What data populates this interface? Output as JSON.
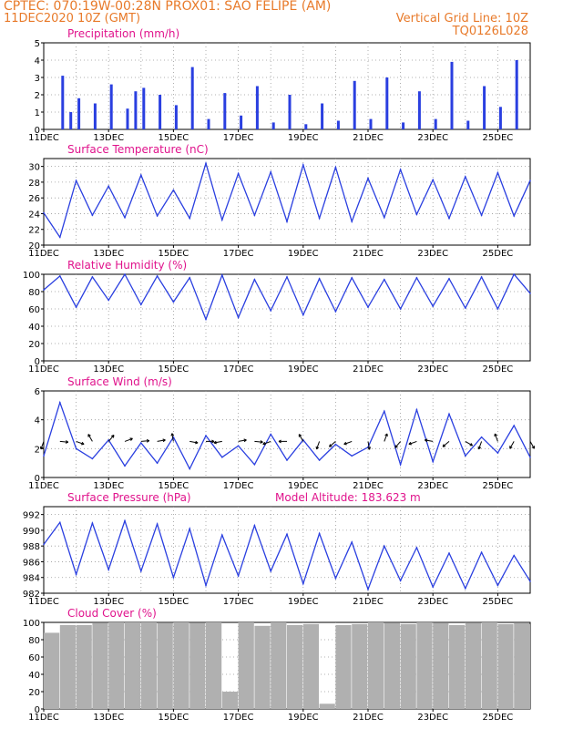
{
  "header": {
    "line1": "CPTEC:   070:19W-00:28N   PROX01: SAO FELIPE (AM)",
    "line2_left": "11DEC2020 10Z (GMT)",
    "line2_right": "Vertical Grid Line: 10Z",
    "line3_right": "TQ0126L028"
  },
  "colors": {
    "header": "#e87a2a",
    "title": "#e0138c",
    "series": "#2a3fe0",
    "cloud": "#b0b0b0",
    "wind_arrow": "#000000"
  },
  "chart_data": [
    {
      "type": "bar",
      "title": "Precipitation (mm/h)",
      "ylim": [
        0,
        5
      ],
      "yticks": [
        0,
        1,
        2,
        3,
        4,
        5
      ],
      "xlabels": [
        "11DEC",
        "13DEC",
        "15DEC",
        "17DEC",
        "19DEC",
        "21DEC",
        "23DEC",
        "25DEC"
      ],
      "x": [
        "12DEC 00Z",
        "12DEC 06Z",
        "12DEC 12Z",
        "13DEC 00Z",
        "13DEC 12Z",
        "14DEC 00Z",
        "14DEC 06Z",
        "14DEC 12Z",
        "15DEC 00Z",
        "15DEC 12Z",
        "16DEC 00Z",
        "16DEC 12Z",
        "17DEC 00Z",
        "17DEC 12Z",
        "18DEC 00Z",
        "18DEC 12Z",
        "19DEC 00Z",
        "19DEC 12Z",
        "20DEC 00Z",
        "20DEC 12Z",
        "21DEC 00Z",
        "21DEC 12Z",
        "22DEC 00Z",
        "22DEC 12Z",
        "23DEC 00Z",
        "23DEC 12Z",
        "24DEC 00Z",
        "24DEC 12Z",
        "25DEC 00Z",
        "25DEC 12Z",
        "26DEC 00Z"
      ],
      "values": [
        3.1,
        1.0,
        1.8,
        1.5,
        2.6,
        1.2,
        2.2,
        2.4,
        2.0,
        1.4,
        3.6,
        0.6,
        2.1,
        0.8,
        2.5,
        0.4,
        2.0,
        0.3,
        1.5,
        0.5,
        2.8,
        0.6,
        3.0,
        0.4,
        2.2,
        0.6,
        3.9,
        0.5,
        2.5,
        1.3,
        4.0
      ]
    },
    {
      "type": "line",
      "title": "Surface Temperature (nC)",
      "ylim": [
        20,
        31
      ],
      "yticks": [
        20,
        22,
        24,
        26,
        28,
        30
      ],
      "xlabels": [
        "11DEC",
        "13DEC",
        "15DEC",
        "17DEC",
        "19DEC",
        "21DEC",
        "23DEC",
        "25DEC"
      ],
      "x": [
        "11DEC 10Z",
        "11DEC 22Z",
        "12DEC 10Z",
        "12DEC 22Z",
        "13DEC 10Z",
        "13DEC 22Z",
        "14DEC 10Z",
        "14DEC 22Z",
        "15DEC 10Z",
        "15DEC 22Z",
        "16DEC 10Z",
        "16DEC 22Z",
        "17DEC 10Z",
        "17DEC 22Z",
        "18DEC 10Z",
        "18DEC 22Z",
        "19DEC 10Z",
        "19DEC 22Z",
        "20DEC 10Z",
        "20DEC 22Z",
        "21DEC 10Z",
        "21DEC 22Z",
        "22DEC 10Z",
        "22DEC 22Z",
        "23DEC 10Z",
        "23DEC 22Z",
        "24DEC 10Z",
        "24DEC 22Z",
        "25DEC 10Z",
        "25DEC 22Z",
        "26DEC 10Z"
      ],
      "series": [
        {
          "values": [
            24.1,
            21.0,
            28.2,
            23.8,
            27.5,
            23.5,
            28.9,
            23.7,
            27.0,
            23.4,
            30.4,
            23.2,
            29.1,
            23.8,
            29.3,
            23.0,
            30.2,
            23.4,
            29.9,
            23.0,
            28.5,
            23.5,
            29.6,
            23.9,
            28.3,
            23.4,
            28.7,
            23.8,
            29.2,
            23.7,
            28.2
          ]
        }
      ]
    },
    {
      "type": "line",
      "title": "Relative Humidity (%)",
      "ylim": [
        0,
        100
      ],
      "yticks": [
        0,
        20,
        40,
        60,
        80,
        100
      ],
      "xlabels": [
        "11DEC",
        "13DEC",
        "15DEC",
        "17DEC",
        "19DEC",
        "21DEC",
        "23DEC",
        "25DEC"
      ],
      "x": [
        "11DEC 10Z",
        "11DEC 22Z",
        "12DEC 10Z",
        "12DEC 22Z",
        "13DEC 10Z",
        "13DEC 22Z",
        "14DEC 10Z",
        "14DEC 22Z",
        "15DEC 10Z",
        "15DEC 22Z",
        "16DEC 10Z",
        "16DEC 22Z",
        "17DEC 10Z",
        "17DEC 22Z",
        "18DEC 10Z",
        "18DEC 22Z",
        "19DEC 10Z",
        "19DEC 22Z",
        "20DEC 10Z",
        "20DEC 22Z",
        "21DEC 10Z",
        "21DEC 22Z",
        "22DEC 10Z",
        "22DEC 22Z",
        "23DEC 10Z",
        "23DEC 22Z",
        "24DEC 10Z",
        "24DEC 22Z",
        "25DEC 10Z",
        "25DEC 22Z",
        "26DEC 10Z"
      ],
      "series": [
        {
          "values": [
            82,
            98,
            62,
            97,
            70,
            100,
            65,
            98,
            68,
            96,
            48,
            99,
            50,
            94,
            58,
            97,
            53,
            95,
            57,
            96,
            62,
            94,
            60,
            96,
            63,
            95,
            61,
            97,
            60,
            100,
            78
          ]
        }
      ]
    },
    {
      "type": "line",
      "title": "Surface Wind (m/s)",
      "ylim": [
        0,
        6
      ],
      "yticks": [
        0,
        2,
        4,
        6
      ],
      "xlabels": [
        "11DEC",
        "13DEC",
        "15DEC",
        "17DEC",
        "19DEC",
        "21DEC",
        "23DEC",
        "25DEC"
      ],
      "x": [
        "11DEC 10Z",
        "11DEC 22Z",
        "12DEC 10Z",
        "12DEC 22Z",
        "13DEC 10Z",
        "13DEC 22Z",
        "14DEC 10Z",
        "14DEC 22Z",
        "15DEC 10Z",
        "15DEC 22Z",
        "16DEC 10Z",
        "16DEC 22Z",
        "17DEC 10Z",
        "17DEC 22Z",
        "18DEC 10Z",
        "18DEC 22Z",
        "19DEC 10Z",
        "19DEC 22Z",
        "20DEC 10Z",
        "20DEC 22Z",
        "21DEC 10Z",
        "21DEC 22Z",
        "22DEC 10Z",
        "22DEC 22Z",
        "23DEC 10Z",
        "23DEC 22Z",
        "24DEC 10Z",
        "24DEC 22Z",
        "25DEC 10Z",
        "25DEC 22Z",
        "26DEC 10Z"
      ],
      "series": [
        {
          "values": [
            1.5,
            5.2,
            2.0,
            1.3,
            2.6,
            0.8,
            2.4,
            1.0,
            2.8,
            0.6,
            2.9,
            1.4,
            2.2,
            0.9,
            3.0,
            1.2,
            2.6,
            1.2,
            2.3,
            1.5,
            2.1,
            4.6,
            0.9,
            4.7,
            1.1,
            4.4,
            1.5,
            2.8,
            1.7,
            3.6,
            1.4
          ]
        }
      ],
      "wind_barbs_direction_deg": [
        200,
        95,
        110,
        330,
        40,
        70,
        85,
        80,
        350,
        100,
        90,
        260,
        80,
        95,
        250,
        270,
        330,
        200,
        230,
        250,
        170,
        20,
        220,
        250,
        280,
        230,
        120,
        200,
        340,
        210,
        150
      ]
    },
    {
      "type": "line",
      "title": "Surface Pressure (hPa)",
      "annotation": "Model Altitude: 183.623  m",
      "ylim": [
        982,
        993
      ],
      "yticks": [
        982,
        984,
        986,
        988,
        990,
        992
      ],
      "xlabels": [
        "11DEC",
        "13DEC",
        "15DEC",
        "17DEC",
        "19DEC",
        "21DEC",
        "23DEC",
        "25DEC"
      ],
      "x": [
        "11DEC 10Z",
        "11DEC 22Z",
        "12DEC 10Z",
        "12DEC 22Z",
        "13DEC 10Z",
        "13DEC 22Z",
        "14DEC 10Z",
        "14DEC 22Z",
        "15DEC 10Z",
        "15DEC 22Z",
        "16DEC 10Z",
        "16DEC 22Z",
        "17DEC 10Z",
        "17DEC 22Z",
        "18DEC 10Z",
        "18DEC 22Z",
        "19DEC 10Z",
        "19DEC 22Z",
        "20DEC 10Z",
        "20DEC 22Z",
        "21DEC 10Z",
        "21DEC 22Z",
        "22DEC 10Z",
        "22DEC 22Z",
        "23DEC 10Z",
        "23DEC 22Z",
        "24DEC 10Z",
        "24DEC 22Z",
        "25DEC 10Z",
        "25DEC 22Z",
        "26DEC 10Z"
      ],
      "series": [
        {
          "values": [
            988.2,
            991.0,
            984.4,
            990.9,
            985.0,
            991.2,
            984.8,
            990.8,
            984.0,
            990.2,
            983.0,
            989.4,
            984.2,
            990.6,
            984.8,
            989.5,
            983.2,
            989.6,
            983.9,
            988.5,
            982.5,
            988.0,
            983.6,
            987.8,
            982.8,
            987.1,
            982.6,
            987.2,
            983.0,
            986.8,
            983.5
          ]
        }
      ]
    },
    {
      "type": "bar",
      "title": "Cloud Cover (%)",
      "ylim": [
        0,
        100
      ],
      "yticks": [
        0,
        20,
        40,
        60,
        80,
        100
      ],
      "xlabels": [
        "11DEC",
        "13DEC",
        "15DEC",
        "17DEC",
        "19DEC",
        "21DEC",
        "23DEC",
        "25DEC"
      ],
      "x": [
        "11DEC 10Z",
        "11DEC 22Z",
        "12DEC 10Z",
        "12DEC 22Z",
        "13DEC 10Z",
        "13DEC 22Z",
        "14DEC 10Z",
        "14DEC 22Z",
        "15DEC 10Z",
        "15DEC 22Z",
        "16DEC 10Z",
        "16DEC 22Z",
        "17DEC 10Z",
        "17DEC 22Z",
        "18DEC 10Z",
        "18DEC 22Z",
        "19DEC 10Z",
        "19DEC 22Z",
        "20DEC 10Z",
        "20DEC 22Z",
        "21DEC 10Z",
        "21DEC 22Z",
        "22DEC 10Z",
        "22DEC 22Z",
        "23DEC 10Z",
        "23DEC 22Z",
        "24DEC 10Z",
        "24DEC 22Z",
        "25DEC 10Z",
        "25DEC 22Z",
        "26DEC 10Z"
      ],
      "values": [
        88,
        97,
        97,
        99,
        100,
        100,
        100,
        99,
        100,
        99,
        100,
        20,
        100,
        96,
        100,
        97,
        98,
        6,
        97,
        98,
        100,
        99,
        98,
        100,
        99,
        97,
        99,
        100,
        98,
        99,
        98
      ]
    }
  ]
}
